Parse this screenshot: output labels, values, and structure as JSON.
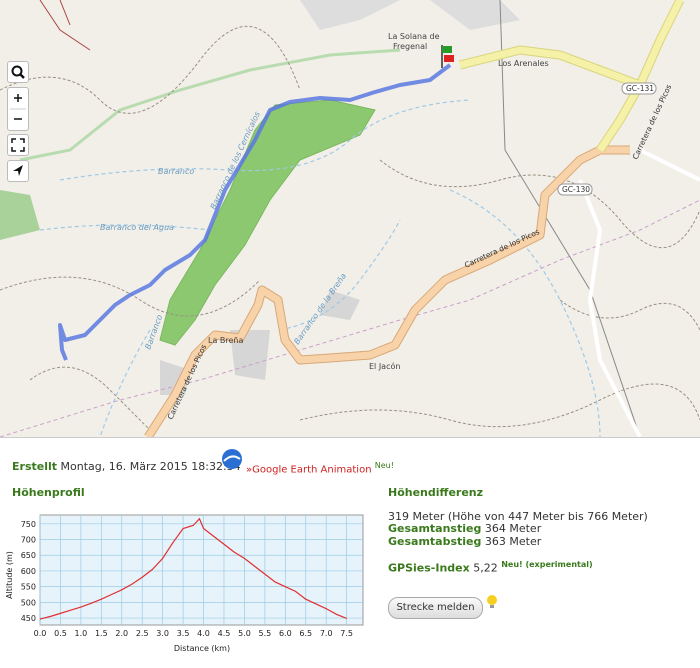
{
  "map": {
    "labels": [
      "La Solana de",
      "Fregenal",
      "Los Arenales",
      "GC-131",
      "GC-130",
      "Carretera de los Picos",
      "Carretera de los Picos",
      "Carretera de los Picos",
      "Barranco",
      "Barranco del Agua",
      "Barranco de los Cernícalos",
      "La Breña",
      "Barranco de la Breña",
      "El Jacón",
      "Barranco"
    ]
  },
  "info": {
    "created_label": "Erstellt",
    "created_date": "Montag, 16. März 2015 18:32:34",
    "ge_link": "»Google Earth Animation",
    "ge_new": "Neu!",
    "profile_title": "Höhenprofil",
    "diff_title": "Höhendifferenz",
    "diff_text": "319 Meter (Höhe von 447 Meter bis 766 Meter)",
    "ascent_label": "Gesamtanstieg",
    "ascent_value": "364 Meter",
    "descent_label": "Gesamtabstieg",
    "descent_value": "363 Meter",
    "index_label": "GPSies-Index",
    "index_value": "5,22",
    "index_new": "Neu! (experimental)",
    "report_button": "Strecke melden"
  },
  "chart_data": {
    "type": "line",
    "x_label": "Distance (km)",
    "y_label": "Altitude (m)",
    "x": [
      0,
      0.25,
      0.5,
      0.75,
      1.0,
      1.25,
      1.5,
      1.75,
      2.0,
      2.25,
      2.5,
      2.75,
      3.0,
      3.25,
      3.5,
      3.75,
      3.9,
      4.0,
      4.25,
      4.5,
      4.75,
      5.0,
      5.25,
      5.5,
      5.75,
      6.0,
      6.25,
      6.5,
      6.75,
      7.0,
      7.25,
      7.5
    ],
    "values": [
      447,
      455,
      465,
      475,
      485,
      497,
      510,
      525,
      540,
      558,
      580,
      605,
      640,
      690,
      735,
      745,
      766,
      735,
      710,
      685,
      660,
      640,
      615,
      590,
      565,
      550,
      535,
      510,
      495,
      480,
      462,
      449
    ],
    "color": "#e03030",
    "grid": true,
    "xlim": [
      0,
      7.9
    ],
    "ylim": [
      428,
      778
    ],
    "xticks": [
      {
        "value": 0,
        "label": "0.0"
      },
      0.5,
      {
        "value": 1,
        "label": "1.0"
      },
      1.5,
      {
        "value": 2,
        "label": "2.0"
      },
      2.5,
      {
        "value": 3,
        "label": "3.0"
      },
      3.5,
      {
        "value": 4,
        "label": "4.0"
      },
      4.5,
      {
        "value": 5,
        "label": "5.0"
      },
      5.5,
      {
        "value": 6,
        "label": "6.0"
      },
      6.5,
      {
        "value": 7,
        "label": "7.0"
      },
      7.5
    ],
    "yticks": [
      450,
      500,
      550,
      600,
      650,
      700,
      750
    ]
  }
}
